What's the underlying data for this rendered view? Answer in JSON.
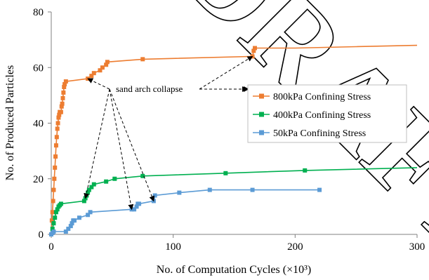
{
  "chart_data": {
    "type": "scatter",
    "xlabel": "No. of Computation Cycles (×10³)",
    "ylabel": "No. of Produced Particles",
    "xlim": [
      0,
      300
    ],
    "ylim": [
      0,
      80
    ],
    "x_ticks": [
      0,
      100,
      200,
      300
    ],
    "y_ticks": [
      0,
      20,
      40,
      60,
      80
    ],
    "grid": false,
    "legend_position": "right",
    "watermark": "DRAFT",
    "annotation": {
      "text": "sand arch collapse",
      "anchor": [
        45,
        52
      ],
      "targets": [
        [
          28,
          13
        ],
        [
          30,
          56
        ],
        [
          66,
          9
        ],
        [
          84,
          12
        ],
        [
          165,
          64
        ]
      ]
    },
    "series": [
      {
        "name": "800kPa Confining Stress",
        "color": "#ed7d31",
        "x": [
          0,
          0.5,
          1,
          1.5,
          2,
          2.5,
          3,
          3.5,
          4,
          4.5,
          5,
          5.5,
          6,
          6.5,
          7,
          7.5,
          8,
          8.5,
          9,
          9.5,
          10,
          10.5,
          11,
          12,
          30,
          33,
          35,
          40,
          42,
          45,
          46,
          75,
          165,
          166,
          167,
          200,
          250,
          300
        ],
        "y": [
          0,
          5,
          8,
          12,
          16,
          20,
          24,
          28,
          32,
          35,
          38,
          40,
          42,
          43,
          44,
          44,
          44,
          46,
          47,
          49,
          51,
          53,
          54,
          55,
          56,
          57,
          58,
          59,
          60,
          61,
          62,
          63,
          64,
          66,
          67,
          67,
          67.5,
          68
        ]
      },
      {
        "name": "400kPa Confining Stress",
        "color": "#00b050",
        "x": [
          0,
          1,
          2,
          3,
          4,
          5,
          6,
          7,
          8,
          27,
          28,
          29,
          30,
          31,
          33,
          35,
          45,
          52,
          75,
          143,
          208,
          300
        ],
        "y": [
          0,
          2,
          4,
          6,
          8,
          9,
          10,
          10.5,
          11,
          12,
          13,
          14,
          15,
          16,
          17,
          18,
          19,
          20,
          21,
          22,
          23,
          24
        ]
      },
      {
        "name": "50kPa Confining Stress",
        "color": "#5b9bd5",
        "x": [
          0,
          1,
          2,
          12,
          14,
          16,
          17,
          18,
          19,
          23,
          30,
          32,
          66,
          68,
          70,
          71,
          72,
          84,
          85,
          105,
          130,
          165,
          220
        ],
        "y": [
          0,
          0.5,
          1,
          1,
          2,
          3,
          4,
          5,
          5,
          6,
          7,
          8,
          9,
          9,
          10,
          11,
          11,
          12,
          14,
          15,
          16,
          16,
          16
        ]
      }
    ]
  }
}
